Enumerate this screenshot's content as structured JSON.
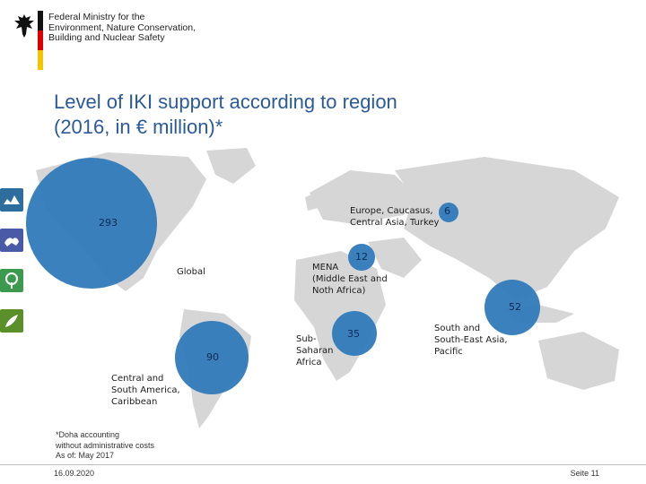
{
  "header": {
    "ministry_lines": [
      "Federal Ministry for the",
      "Environment, Nature Conservation,",
      "Building and Nuclear Safety"
    ]
  },
  "slide": {
    "title_line1": "Level of IKI support according to region",
    "title_line2": "(2016, in € million)*"
  },
  "regions": [
    {
      "id": "global",
      "label_lines": [
        "Global"
      ],
      "value": "293"
    },
    {
      "id": "europe",
      "label_lines": [
        "Europe, Caucasus,",
        "Central Asia, Turkey"
      ],
      "value": "6"
    },
    {
      "id": "mena",
      "label_lines": [
        "MENA",
        "(Middle East and",
        "Noth Africa)"
      ],
      "value": "12"
    },
    {
      "id": "latam",
      "label_lines": [
        "Central and",
        "South America,",
        "Caribbean"
      ],
      "value": "90"
    },
    {
      "id": "ssa",
      "label_lines": [
        "Sub-",
        "Saharan",
        "Africa"
      ],
      "value": "35"
    },
    {
      "id": "sea",
      "label_lines": [
        "South and",
        "South-East Asia,",
        "Pacific"
      ],
      "value": "52"
    }
  ],
  "colors": {
    "bubble": "#2f7ab9",
    "land": "#d6d6d6",
    "title": "#2a5a9a"
  },
  "side_icons": [
    "climate-icon",
    "hands-icon",
    "tree-icon",
    "biodiversity-icon"
  ],
  "footnote": {
    "line1": "*Doha accounting",
    "line2": "without administrative costs",
    "line3": "As of: May 2017"
  },
  "footer": {
    "date": "16.09.2020",
    "page": "Seite 11"
  }
}
